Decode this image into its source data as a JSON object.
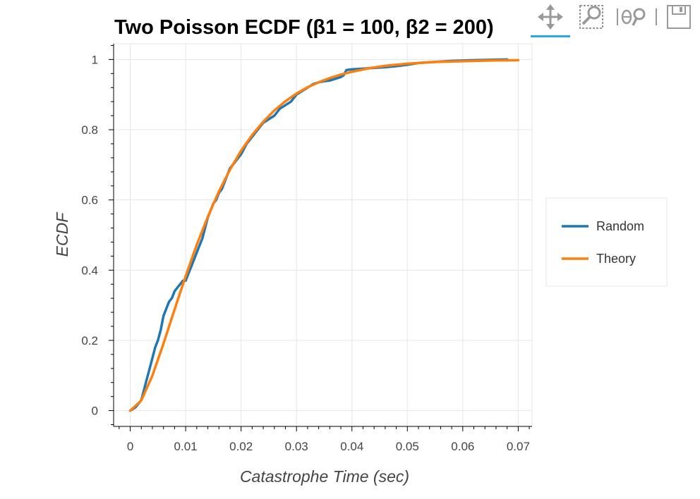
{
  "toolbar": {
    "tools": [
      {
        "name": "pan",
        "icon": "pan-icon",
        "active": true
      },
      {
        "name": "box-zoom",
        "icon": "box-zoom-icon",
        "active": false
      },
      {
        "name": "wheel-zoom",
        "icon": "wheel-zoom-icon",
        "active": false
      },
      {
        "name": "save",
        "icon": "save-icon",
        "active": false
      }
    ],
    "active_color": "#26aae1"
  },
  "chart_data": {
    "type": "line",
    "title": "Two Poisson ECDF (β1 = 100, β2 = 200)",
    "xlabel": "Catastrophe Time (sec)",
    "ylabel": "ECDF",
    "xlim": [
      -0.003,
      0.0725
    ],
    "ylim": [
      -0.045,
      1.045
    ],
    "x_ticks": [
      0,
      0.01,
      0.02,
      0.03,
      0.04,
      0.05,
      0.06,
      0.07
    ],
    "x_tick_labels": [
      "0",
      "0.01",
      "0.02",
      "0.03",
      "0.04",
      "0.05",
      "0.06",
      "0.07"
    ],
    "y_ticks": [
      0,
      0.2,
      0.4,
      0.6,
      0.8,
      1
    ],
    "y_tick_labels": [
      "0",
      "0.2",
      "0.4",
      "0.6",
      "0.8",
      "1"
    ],
    "grid": true,
    "legend_position": "right",
    "series": [
      {
        "name": "Random",
        "color": "#1f77b4",
        "x": [
          0.0,
          0.001,
          0.002,
          0.0025,
          0.003,
          0.0035,
          0.004,
          0.0045,
          0.005,
          0.0055,
          0.006,
          0.0065,
          0.007,
          0.0075,
          0.008,
          0.0085,
          0.009,
          0.0095,
          0.01,
          0.0105,
          0.011,
          0.0115,
          0.012,
          0.0125,
          0.013,
          0.0135,
          0.014,
          0.0145,
          0.015,
          0.0155,
          0.016,
          0.0165,
          0.017,
          0.0175,
          0.018,
          0.0185,
          0.019,
          0.0195,
          0.02,
          0.021,
          0.022,
          0.023,
          0.024,
          0.025,
          0.026,
          0.027,
          0.028,
          0.029,
          0.03,
          0.031,
          0.032,
          0.033,
          0.034,
          0.035,
          0.036,
          0.037,
          0.038,
          0.0385,
          0.039,
          0.04,
          0.042,
          0.044,
          0.046,
          0.048,
          0.05,
          0.052,
          0.055,
          0.058,
          0.06,
          0.062,
          0.065,
          0.068
        ],
        "y": [
          0.0,
          0.01,
          0.03,
          0.06,
          0.09,
          0.12,
          0.15,
          0.18,
          0.2,
          0.23,
          0.27,
          0.29,
          0.31,
          0.32,
          0.34,
          0.35,
          0.36,
          0.37,
          0.37,
          0.39,
          0.41,
          0.43,
          0.45,
          0.47,
          0.49,
          0.52,
          0.55,
          0.57,
          0.59,
          0.6,
          0.62,
          0.63,
          0.65,
          0.67,
          0.69,
          0.7,
          0.71,
          0.72,
          0.73,
          0.76,
          0.78,
          0.8,
          0.82,
          0.83,
          0.84,
          0.86,
          0.87,
          0.88,
          0.9,
          0.91,
          0.92,
          0.93,
          0.935,
          0.938,
          0.94,
          0.945,
          0.95,
          0.955,
          0.97,
          0.972,
          0.974,
          0.976,
          0.978,
          0.981,
          0.985,
          0.99,
          0.993,
          0.996,
          0.997,
          0.998,
          0.999,
          1.0
        ]
      },
      {
        "name": "Theory",
        "color": "#ff7f0e",
        "x": [
          0.0,
          0.002,
          0.004,
          0.006,
          0.008,
          0.01,
          0.012,
          0.014,
          0.016,
          0.018,
          0.02,
          0.022,
          0.024,
          0.026,
          0.028,
          0.03,
          0.032,
          0.034,
          0.036,
          0.038,
          0.04,
          0.043,
          0.046,
          0.05,
          0.055,
          0.06,
          0.065,
          0.07
        ],
        "y": [
          0.0,
          0.029,
          0.1,
          0.191,
          0.288,
          0.383,
          0.472,
          0.552,
          0.624,
          0.686,
          0.74,
          0.785,
          0.823,
          0.855,
          0.881,
          0.903,
          0.921,
          0.935,
          0.947,
          0.957,
          0.965,
          0.975,
          0.982,
          0.988,
          0.993,
          0.995,
          0.997,
          0.998
        ]
      }
    ]
  }
}
